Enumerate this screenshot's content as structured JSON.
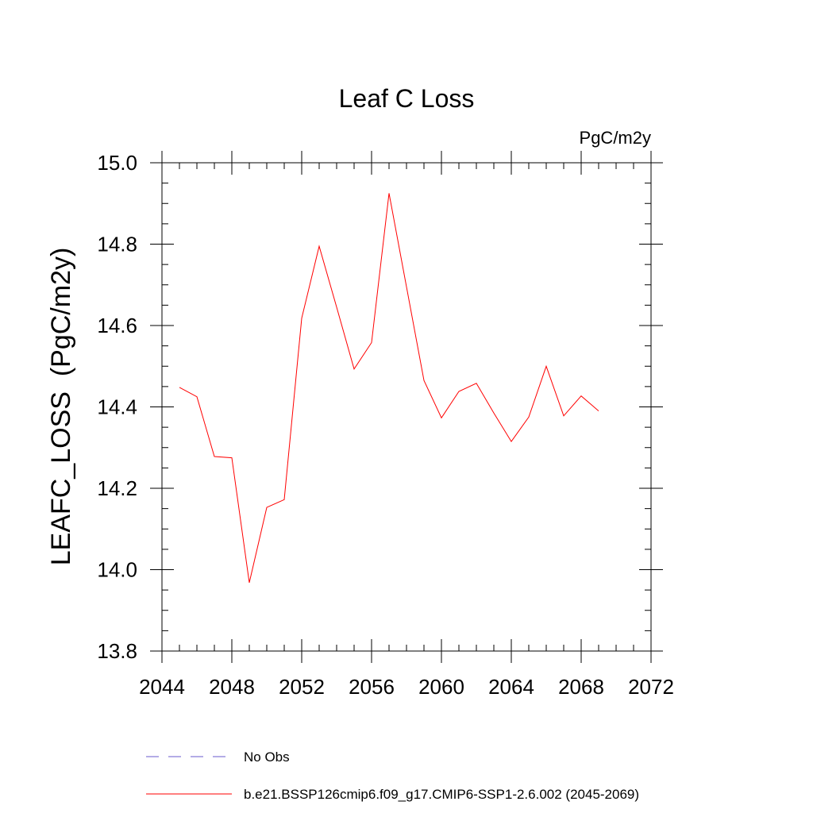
{
  "chart_data": {
    "type": "line",
    "title": "Leaf C Loss",
    "units_label": "PgC/m2y",
    "xlabel": "",
    "ylabel": "LEAFC_LOSS  (PgC/m2y)",
    "xlim": [
      2044,
      2072
    ],
    "ylim": [
      13.8,
      15.0
    ],
    "x_ticks": [
      2044,
      2048,
      2052,
      2056,
      2060,
      2064,
      2068,
      2072
    ],
    "x_tick_labels": [
      "2044",
      "2048",
      "2052",
      "2056",
      "2060",
      "2064",
      "2068",
      "2072"
    ],
    "x_minor_step": 1,
    "y_ticks": [
      13.8,
      14.0,
      14.2,
      14.4,
      14.6,
      14.8,
      15.0
    ],
    "y_tick_labels": [
      "13.8",
      "14.0",
      "14.2",
      "14.4",
      "14.6",
      "14.8",
      "15.0"
    ],
    "y_minor_step": 0.05,
    "grid": false,
    "legend_position": "bottom",
    "series": [
      {
        "name": "b.e21.BSSP126cmip6.f09_g17.CMIP6-SSP1-2.6.002 (2045-2069)",
        "color": "#ff0000",
        "style": "solid",
        "x": [
          2045,
          2046,
          2047,
          2048,
          2049,
          2050,
          2051,
          2052,
          2053,
          2054,
          2055,
          2056,
          2057,
          2058,
          2059,
          2060,
          2061,
          2062,
          2063,
          2064,
          2065,
          2066,
          2067,
          2068,
          2069
        ],
        "values": [
          14.448,
          14.425,
          14.278,
          14.275,
          13.968,
          14.153,
          14.172,
          14.618,
          14.795,
          14.645,
          14.493,
          14.558,
          14.925,
          14.695,
          14.465,
          14.373,
          14.438,
          14.458,
          14.385,
          14.315,
          14.375,
          14.5,
          14.378,
          14.427,
          14.39
        ]
      }
    ],
    "legend": [
      {
        "label": "No Obs",
        "color": "#6a5acd",
        "style": "dashed"
      },
      {
        "label": "b.e21.BSSP126cmip6.f09_g17.CMIP6-SSP1-2.6.002 (2045-2069)",
        "color": "#ff0000",
        "style": "solid"
      }
    ]
  }
}
